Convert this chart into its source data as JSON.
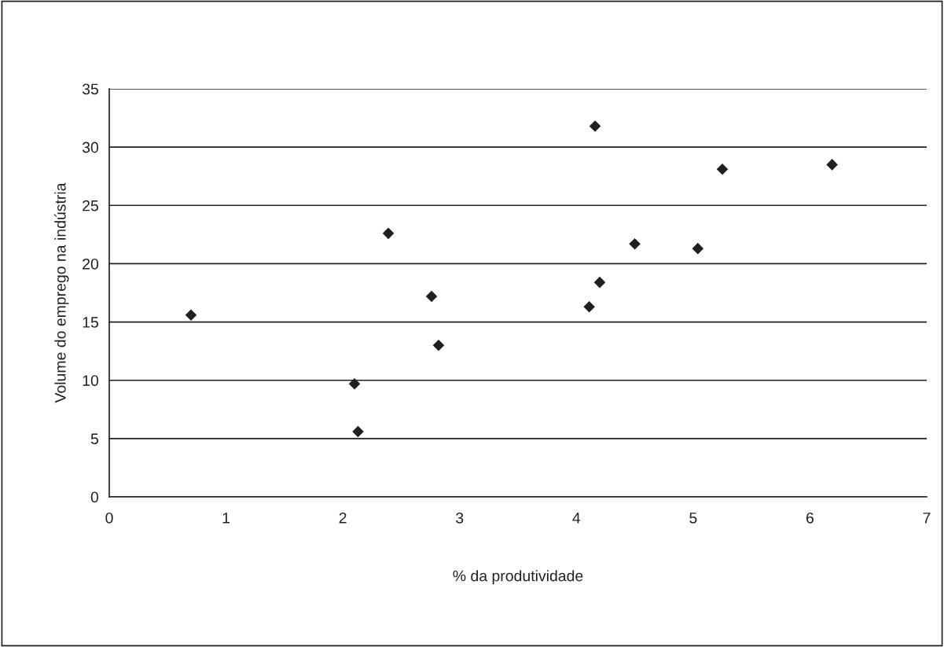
{
  "chart_data": {
    "type": "scatter",
    "xlabel": "% da produtividade",
    "ylabel": "Volume do emprego na indústria",
    "x": [
      0.7,
      2.1,
      2.13,
      2.39,
      2.76,
      2.82,
      4.11,
      4.16,
      4.2,
      4.5,
      5.04,
      5.25,
      6.19
    ],
    "series": [
      {
        "color": "#231f20",
        "values": [
          15.6,
          9.7,
          5.6,
          22.6,
          17.2,
          13.0,
          16.3,
          31.8,
          18.4,
          21.7,
          21.3,
          28.1,
          28.5
        ]
      }
    ],
    "xlim": [
      0,
      7
    ],
    "xticks": [
      0,
      1,
      2,
      3,
      4,
      5,
      6,
      7
    ],
    "ylim": [
      0,
      35
    ],
    "yticks": [
      0,
      5,
      10,
      15,
      20,
      25,
      30,
      35
    ],
    "grid": "y",
    "marker": "diamond",
    "legend": false
  }
}
